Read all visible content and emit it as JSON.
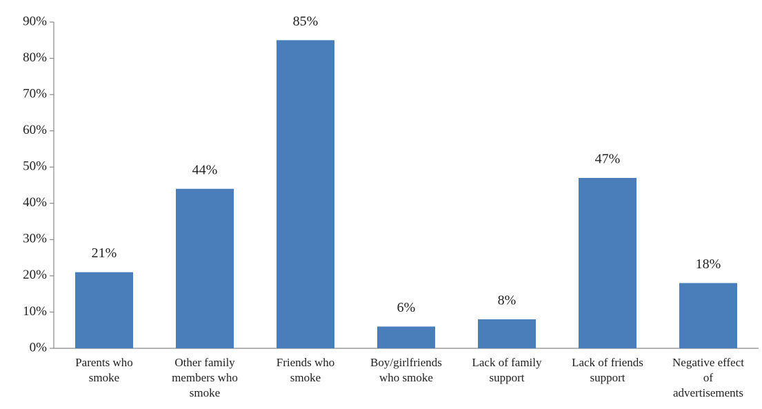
{
  "chart_data": {
    "type": "bar",
    "categories": [
      "Parents who smoke",
      "Other family members who smoke",
      "Friends who smoke",
      "Boy/girlfriends who smoke",
      "Lack of family support",
      "Lack of friends support",
      "Negative effect of advertisements"
    ],
    "values": [
      21,
      44,
      85,
      6,
      8,
      47,
      18
    ],
    "value_labels": [
      "21%",
      "44%",
      "85%",
      "6%",
      "8%",
      "47%",
      "18%"
    ],
    "color": "#4a7ebb",
    "ylim": [
      0,
      90
    ],
    "yticks": [
      {
        "value": 0,
        "label": "0%"
      },
      {
        "value": 10,
        "label": "10%"
      },
      {
        "value": 20,
        "label": "20%"
      },
      {
        "value": 30,
        "label": "30%"
      },
      {
        "value": 40,
        "label": "40%"
      },
      {
        "value": 50,
        "label": "50%"
      },
      {
        "value": 60,
        "label": "60%"
      },
      {
        "value": 70,
        "label": "70%"
      },
      {
        "value": 80,
        "label": "80%"
      },
      {
        "value": 90,
        "label": "90%"
      }
    ],
    "grid": false
  }
}
